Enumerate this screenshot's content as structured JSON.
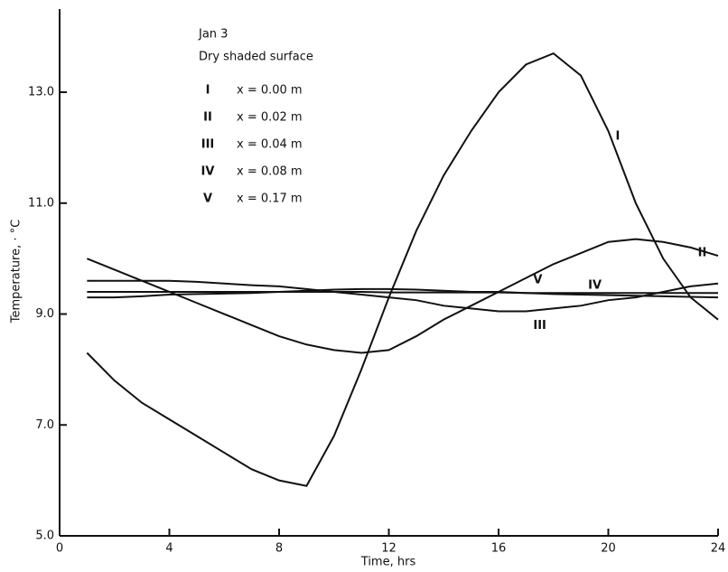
{
  "chart_data": {
    "type": "line",
    "annotations": [
      "Jan 3",
      "Dry shaded surface"
    ],
    "xlabel": "Time,  hrs",
    "ylabel": "Temperature, · °C",
    "x": [
      1,
      2,
      3,
      4,
      5,
      6,
      7,
      8,
      9,
      10,
      11,
      12,
      13,
      14,
      15,
      16,
      17,
      18,
      19,
      20,
      21,
      22,
      23,
      24
    ],
    "xlim": [
      0,
      24
    ],
    "xticks": [
      0,
      4,
      8,
      12,
      16,
      20,
      24
    ],
    "ylim": [
      5,
      14.5
    ],
    "yticks": [
      {
        "value": 5,
        "label": "5.0"
      },
      {
        "value": 7,
        "label": "7.0"
      },
      {
        "value": 9,
        "label": "9.0"
      },
      {
        "value": 11,
        "label": "11.0"
      },
      {
        "value": 13,
        "label": "13.0"
      }
    ],
    "series": [
      {
        "name": "I",
        "label": "x = 0.00 m",
        "color": "#111111",
        "values": [
          8.3,
          7.8,
          7.4,
          7.1,
          6.8,
          6.5,
          6.2,
          6.0,
          5.9,
          6.8,
          8.0,
          9.3,
          10.5,
          11.5,
          12.3,
          13.0,
          13.5,
          13.7,
          13.3,
          12.3,
          11.0,
          10.0,
          9.3,
          8.9
        ]
      },
      {
        "name": "II",
        "label": "x = 0.02 m",
        "color": "#111111",
        "values": [
          10.0,
          9.8,
          9.6,
          9.4,
          9.2,
          9.0,
          8.8,
          8.6,
          8.45,
          8.35,
          8.3,
          8.35,
          8.6,
          8.9,
          9.15,
          9.4,
          9.65,
          9.9,
          10.1,
          10.3,
          10.35,
          10.3,
          10.2,
          10.05
        ]
      },
      {
        "name": "III",
        "label": "x = 0.04 m",
        "color": "#111111",
        "values": [
          9.6,
          9.6,
          9.6,
          9.6,
          9.58,
          9.55,
          9.52,
          9.5,
          9.45,
          9.4,
          9.35,
          9.3,
          9.25,
          9.15,
          9.1,
          9.05,
          9.05,
          9.1,
          9.15,
          9.25,
          9.3,
          9.4,
          9.5,
          9.55
        ]
      },
      {
        "name": "IV",
        "label": "x = 0.08 m",
        "color": "#111111",
        "values": [
          9.3,
          9.3,
          9.32,
          9.35,
          9.36,
          9.37,
          9.38,
          9.4,
          9.42,
          9.44,
          9.45,
          9.45,
          9.44,
          9.42,
          9.4,
          9.4,
          9.38,
          9.36,
          9.35,
          9.34,
          9.33,
          9.32,
          9.31,
          9.3
        ]
      },
      {
        "name": "V",
        "label": "x = 0.17 m",
        "color": "#111111",
        "values": [
          9.4,
          9.4,
          9.4,
          9.4,
          9.4,
          9.4,
          9.4,
          9.4,
          9.4,
          9.4,
          9.4,
          9.39,
          9.39,
          9.39,
          9.39,
          9.39,
          9.38,
          9.38,
          9.38,
          9.38,
          9.38,
          9.38,
          9.38,
          9.38
        ]
      }
    ]
  }
}
